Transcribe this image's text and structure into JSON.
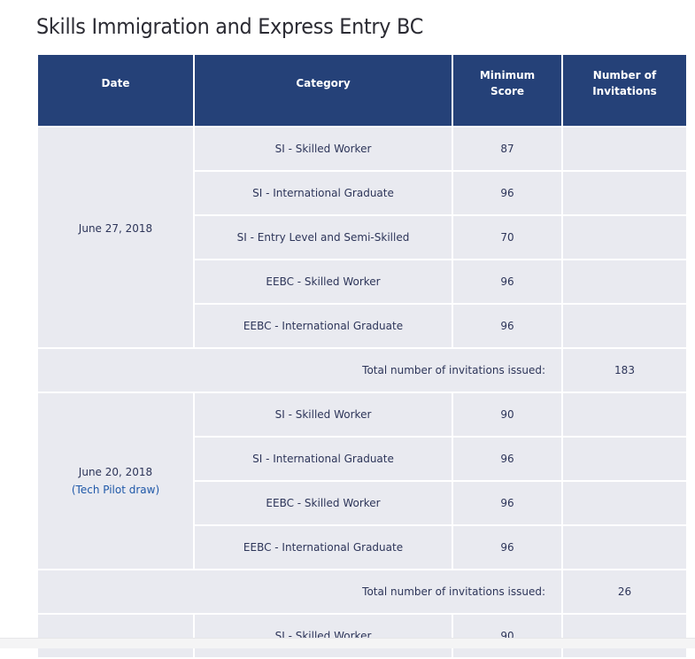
{
  "title": "Skills Immigration and Express Entry BC",
  "headers": {
    "date": "Date",
    "category": "Category",
    "min_score_1": "Minimum",
    "min_score_2": "Score",
    "invites_1": "Number of",
    "invites_2": "Invitations"
  },
  "draws": [
    {
      "date": "June 27, 2018",
      "rows": [
        {
          "category": "SI - Skilled Worker",
          "score": "87"
        },
        {
          "category": "SI - International Graduate",
          "score": "96"
        },
        {
          "category": "SI - Entry Level and Semi-Skilled",
          "score": "70"
        },
        {
          "category": "EEBC - Skilled Worker",
          "score": "96"
        },
        {
          "category": "EEBC - International Graduate",
          "score": "96"
        }
      ],
      "total_label": "Total number of invitations issued:",
      "total": "183"
    },
    {
      "date": "June 20, 2018",
      "note": "(Tech Pilot draw)",
      "rows": [
        {
          "category": "SI - Skilled Worker",
          "score": "90"
        },
        {
          "category": "SI - International Graduate",
          "score": "96"
        },
        {
          "category": "EEBC - Skilled Worker",
          "score": "96"
        },
        {
          "category": "EEBC - International Graduate",
          "score": "96"
        }
      ],
      "total_label": "Total number of invitations issued:",
      "total": "26"
    },
    {
      "rows": [
        {
          "category": "SI - Skilled Worker",
          "score": "90"
        }
      ]
    }
  ],
  "colors": {
    "header_bg": "#254178",
    "cell_bg": "#e9eaf0",
    "link": "#1f58a8"
  }
}
